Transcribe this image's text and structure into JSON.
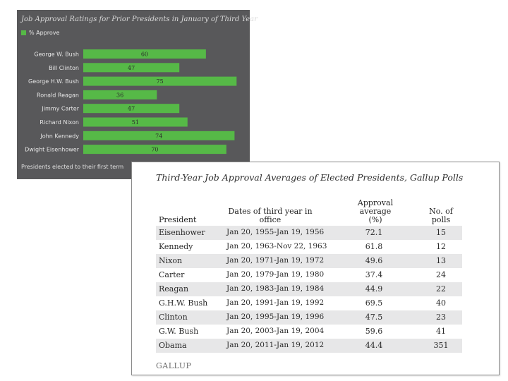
{
  "chart_data": {
    "type": "bar",
    "orientation": "horizontal",
    "title": "Job Approval Ratings for Prior Presidents in January of Third Year",
    "legend": [
      "% Approve"
    ],
    "categories": [
      "George W. Bush",
      "Bill Clinton",
      "George H.W. Bush",
      "Ronald Reagan",
      "Jimmy Carter",
      "Richard Nixon",
      "John Kennedy",
      "Dwight Eisenhower"
    ],
    "values": [
      60,
      47,
      75,
      36,
      47,
      51,
      74,
      70
    ],
    "xlim": [
      0,
      78
    ],
    "footnote": "Presidents elected to their first term",
    "bar_color": "#56b947",
    "background": "#58585a"
  },
  "table": {
    "title": "Third-Year Job Approval Averages of Elected Presidents, Gallup Polls",
    "headers": {
      "president": "President",
      "dates": "Dates of third year in office",
      "approval_line1": "Approval",
      "approval_line2": "average",
      "approval_line3": "(%)",
      "polls": "No. of polls"
    },
    "rows": [
      {
        "president": "Eisenhower",
        "dates": "Jan 20, 1955-Jan 19, 1956",
        "average": "72.1",
        "polls": "15"
      },
      {
        "president": "Kennedy",
        "dates": "Jan 20, 1963-Nov 22, 1963",
        "average": "61.8",
        "polls": "12"
      },
      {
        "president": "Nixon",
        "dates": "Jan 20, 1971-Jan 19, 1972",
        "average": "49.6",
        "polls": "13"
      },
      {
        "president": "Carter",
        "dates": "Jan 20, 1979-Jan 19, 1980",
        "average": "37.4",
        "polls": "24"
      },
      {
        "president": "Reagan",
        "dates": "Jan 20, 1983-Jan 19, 1984",
        "average": "44.9",
        "polls": "22"
      },
      {
        "president": "G.H.W. Bush",
        "dates": "Jan 20, 1991-Jan 19, 1992",
        "average": "69.5",
        "polls": "40"
      },
      {
        "president": "Clinton",
        "dates": "Jan 20, 1995-Jan 19, 1996",
        "average": "47.5",
        "polls": "23"
      },
      {
        "president": "G.W. Bush",
        "dates": "Jan 20, 2003-Jan 19, 2004",
        "average": "59.6",
        "polls": "41"
      },
      {
        "president": "Obama",
        "dates": "Jan 20, 2011-Jan 19, 2012",
        "average": "44.4",
        "polls": "351"
      }
    ],
    "source_logo": "GALLUP"
  }
}
